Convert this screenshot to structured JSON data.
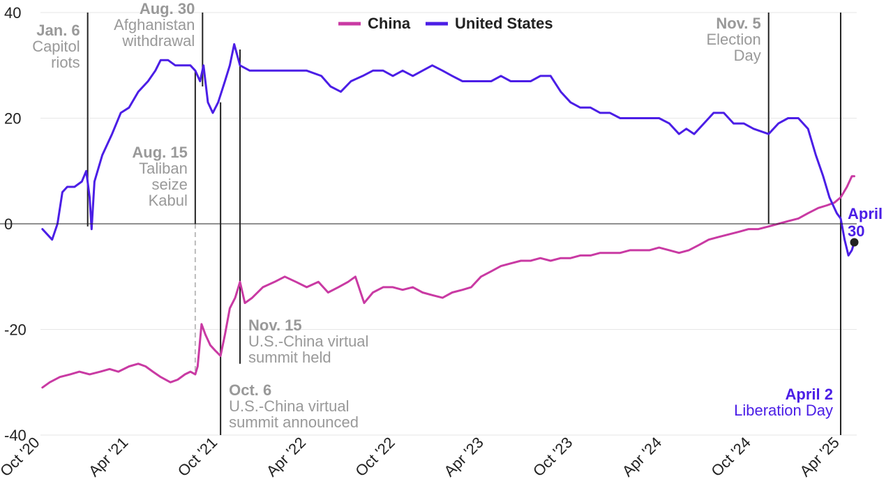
{
  "chart_data": {
    "type": "line",
    "title": "",
    "xlabel": "",
    "ylabel": "",
    "ylim": [
      -40,
      40
    ],
    "y_ticks": [
      40,
      20,
      0,
      -20,
      -40
    ],
    "y_tick_labels": [
      "40",
      "20",
      "0",
      "-20",
      "-40"
    ],
    "x_range": [
      "2020-10-01",
      "2025-05-05"
    ],
    "x_ticks": [
      {
        "label": "Oct '20",
        "date": "2020-10-01"
      },
      {
        "label": "Apr '21",
        "date": "2021-04-01"
      },
      {
        "label": "Oct '21",
        "date": "2021-10-01"
      },
      {
        "label": "Apr '22",
        "date": "2022-04-01"
      },
      {
        "label": "Oct '22",
        "date": "2022-10-01"
      },
      {
        "label": "Apr '23",
        "date": "2023-04-01"
      },
      {
        "label": "Oct '23",
        "date": "2023-10-01"
      },
      {
        "label": "Apr '24",
        "date": "2024-04-01"
      },
      {
        "label": "Oct '24",
        "date": "2024-10-01"
      },
      {
        "label": "Apr '25",
        "date": "2025-04-01"
      }
    ],
    "grid": true,
    "legend_position": "top-center",
    "series": [
      {
        "name": "China",
        "color": "#c93aa3",
        "points": [
          [
            "2020-10-05",
            -31
          ],
          [
            "2020-10-20",
            -30
          ],
          [
            "2020-11-10",
            -29
          ],
          [
            "2020-12-01",
            -28.5
          ],
          [
            "2020-12-20",
            -28
          ],
          [
            "2021-01-10",
            -28.5
          ],
          [
            "2021-02-01",
            -28
          ],
          [
            "2021-02-20",
            -27.5
          ],
          [
            "2021-03-10",
            -28
          ],
          [
            "2021-04-01",
            -27
          ],
          [
            "2021-04-20",
            -26.5
          ],
          [
            "2021-05-05",
            -27
          ],
          [
            "2021-05-20",
            -28
          ],
          [
            "2021-06-05",
            -29
          ],
          [
            "2021-06-25",
            -30
          ],
          [
            "2021-07-10",
            -29.5
          ],
          [
            "2021-07-25",
            -28.5
          ],
          [
            "2021-08-05",
            -28
          ],
          [
            "2021-08-15",
            -28.5
          ],
          [
            "2021-08-20",
            -27
          ],
          [
            "2021-08-28",
            -19
          ],
          [
            "2021-09-05",
            -21
          ],
          [
            "2021-09-15",
            -23
          ],
          [
            "2021-09-25",
            -24
          ],
          [
            "2021-10-06",
            -25
          ],
          [
            "2021-10-15",
            -21
          ],
          [
            "2021-10-25",
            -16
          ],
          [
            "2021-11-05",
            -14
          ],
          [
            "2021-11-15",
            -11
          ],
          [
            "2021-11-25",
            -15
          ],
          [
            "2021-12-10",
            -14
          ],
          [
            "2022-01-01",
            -12
          ],
          [
            "2022-01-25",
            -11
          ],
          [
            "2022-02-15",
            -10
          ],
          [
            "2022-03-10",
            -11
          ],
          [
            "2022-04-01",
            -12
          ],
          [
            "2022-04-25",
            -11
          ],
          [
            "2022-05-15",
            -13
          ],
          [
            "2022-06-05",
            -12
          ],
          [
            "2022-06-25",
            -11
          ],
          [
            "2022-07-10",
            -10
          ],
          [
            "2022-07-28",
            -15
          ],
          [
            "2022-08-15",
            -13
          ],
          [
            "2022-09-05",
            -12
          ],
          [
            "2022-09-25",
            -12
          ],
          [
            "2022-10-15",
            -12.5
          ],
          [
            "2022-11-05",
            -12
          ],
          [
            "2022-11-25",
            -13
          ],
          [
            "2022-12-15",
            -13.5
          ],
          [
            "2023-01-05",
            -14
          ],
          [
            "2023-01-25",
            -13
          ],
          [
            "2023-02-15",
            -12.5
          ],
          [
            "2023-03-05",
            -12
          ],
          [
            "2023-03-25",
            -10
          ],
          [
            "2023-04-15",
            -9
          ],
          [
            "2023-05-05",
            -8
          ],
          [
            "2023-05-25",
            -7.5
          ],
          [
            "2023-06-15",
            -7
          ],
          [
            "2023-07-05",
            -7
          ],
          [
            "2023-07-25",
            -6.5
          ],
          [
            "2023-08-15",
            -7
          ],
          [
            "2023-09-05",
            -6.5
          ],
          [
            "2023-09-25",
            -6.5
          ],
          [
            "2023-10-15",
            -6
          ],
          [
            "2023-11-05",
            -6
          ],
          [
            "2023-11-25",
            -5.5
          ],
          [
            "2023-12-15",
            -5.5
          ],
          [
            "2024-01-05",
            -5.5
          ],
          [
            "2024-01-25",
            -5
          ],
          [
            "2024-02-15",
            -5
          ],
          [
            "2024-03-05",
            -5
          ],
          [
            "2024-03-25",
            -4.5
          ],
          [
            "2024-04-15",
            -5
          ],
          [
            "2024-05-05",
            -5.5
          ],
          [
            "2024-05-25",
            -5
          ],
          [
            "2024-06-15",
            -4
          ],
          [
            "2024-07-05",
            -3
          ],
          [
            "2024-07-25",
            -2.5
          ],
          [
            "2024-08-15",
            -2
          ],
          [
            "2024-09-05",
            -1.5
          ],
          [
            "2024-09-25",
            -1
          ],
          [
            "2024-10-15",
            -1
          ],
          [
            "2024-11-05",
            -0.5
          ],
          [
            "2024-11-25",
            0
          ],
          [
            "2024-12-15",
            0.5
          ],
          [
            "2025-01-05",
            1
          ],
          [
            "2025-01-25",
            2
          ],
          [
            "2025-02-15",
            3
          ],
          [
            "2025-03-05",
            3.5
          ],
          [
            "2025-03-20",
            4
          ],
          [
            "2025-04-02",
            5
          ],
          [
            "2025-04-15",
            7
          ],
          [
            "2025-04-25",
            9
          ],
          [
            "2025-04-30",
            9
          ]
        ]
      },
      {
        "name": "United States",
        "color": "#4b1ee6",
        "points": [
          [
            "2020-10-05",
            -1
          ],
          [
            "2020-10-15",
            -2
          ],
          [
            "2020-10-25",
            -3
          ],
          [
            "2020-11-05",
            0
          ],
          [
            "2020-11-15",
            6
          ],
          [
            "2020-11-25",
            7
          ],
          [
            "2020-12-10",
            7
          ],
          [
            "2020-12-25",
            8
          ],
          [
            "2021-01-03",
            10
          ],
          [
            "2021-01-10",
            5
          ],
          [
            "2021-01-14",
            -1
          ],
          [
            "2021-01-20",
            8
          ],
          [
            "2021-02-05",
            13
          ],
          [
            "2021-02-25",
            17
          ],
          [
            "2021-03-15",
            21
          ],
          [
            "2021-04-01",
            22
          ],
          [
            "2021-04-20",
            25
          ],
          [
            "2021-05-10",
            27
          ],
          [
            "2021-05-25",
            29
          ],
          [
            "2021-06-05",
            31
          ],
          [
            "2021-06-20",
            31
          ],
          [
            "2021-07-05",
            30
          ],
          [
            "2021-07-20",
            30
          ],
          [
            "2021-08-05",
            30
          ],
          [
            "2021-08-15",
            29
          ],
          [
            "2021-08-25",
            27
          ],
          [
            "2021-09-01",
            30
          ],
          [
            "2021-09-10",
            23
          ],
          [
            "2021-09-20",
            21
          ],
          [
            "2021-10-01",
            23
          ],
          [
            "2021-10-15",
            27
          ],
          [
            "2021-10-25",
            30
          ],
          [
            "2021-11-03",
            34
          ],
          [
            "2021-11-15",
            30
          ],
          [
            "2021-12-05",
            29
          ],
          [
            "2022-01-01",
            29
          ],
          [
            "2022-02-01",
            29
          ],
          [
            "2022-03-01",
            29
          ],
          [
            "2022-04-01",
            29
          ],
          [
            "2022-05-01",
            28
          ],
          [
            "2022-05-20",
            26
          ],
          [
            "2022-06-10",
            25
          ],
          [
            "2022-07-01",
            27
          ],
          [
            "2022-07-25",
            28
          ],
          [
            "2022-08-15",
            29
          ],
          [
            "2022-09-05",
            29
          ],
          [
            "2022-09-25",
            28
          ],
          [
            "2022-10-15",
            29
          ],
          [
            "2022-11-05",
            28
          ],
          [
            "2022-11-25",
            29
          ],
          [
            "2022-12-15",
            30
          ],
          [
            "2023-01-05",
            29
          ],
          [
            "2023-01-25",
            28
          ],
          [
            "2023-02-15",
            27
          ],
          [
            "2023-03-05",
            27
          ],
          [
            "2023-03-25",
            27
          ],
          [
            "2023-04-15",
            27
          ],
          [
            "2023-05-05",
            28
          ],
          [
            "2023-05-25",
            27
          ],
          [
            "2023-06-15",
            27
          ],
          [
            "2023-07-05",
            27
          ],
          [
            "2023-07-25",
            28
          ],
          [
            "2023-08-15",
            28
          ],
          [
            "2023-09-05",
            25
          ],
          [
            "2023-09-25",
            23
          ],
          [
            "2023-10-15",
            22
          ],
          [
            "2023-11-05",
            22
          ],
          [
            "2023-11-25",
            21
          ],
          [
            "2023-12-15",
            21
          ],
          [
            "2024-01-05",
            20
          ],
          [
            "2024-01-25",
            20
          ],
          [
            "2024-02-15",
            20
          ],
          [
            "2024-03-05",
            20
          ],
          [
            "2024-03-25",
            20
          ],
          [
            "2024-04-15",
            19
          ],
          [
            "2024-05-05",
            17
          ],
          [
            "2024-05-20",
            18
          ],
          [
            "2024-06-05",
            17
          ],
          [
            "2024-06-25",
            19
          ],
          [
            "2024-07-15",
            21
          ],
          [
            "2024-08-05",
            21
          ],
          [
            "2024-08-25",
            19
          ],
          [
            "2024-09-15",
            19
          ],
          [
            "2024-10-05",
            18
          ],
          [
            "2024-11-05",
            17
          ],
          [
            "2024-11-25",
            19
          ],
          [
            "2024-12-15",
            20
          ],
          [
            "2025-01-05",
            20
          ],
          [
            "2025-01-25",
            18
          ],
          [
            "2025-02-10",
            13
          ],
          [
            "2025-02-25",
            9
          ],
          [
            "2025-03-10",
            5
          ],
          [
            "2025-03-25",
            2
          ],
          [
            "2025-04-02",
            1
          ],
          [
            "2025-04-10",
            -3
          ],
          [
            "2025-04-18",
            -6
          ],
          [
            "2025-04-25",
            -5
          ],
          [
            "2025-04-30",
            -3.5
          ]
        ]
      }
    ],
    "annotations": [
      {
        "date": "2021-01-06",
        "title": "Jan. 6",
        "lines": [
          "Capitol",
          "riots"
        ],
        "line_top": 40,
        "line_bottom": -0.5,
        "color": "#999999",
        "align": "end"
      },
      {
        "date": "2021-08-15",
        "title": "Aug. 15",
        "lines": [
          "Taliban",
          "seize",
          "Kabul"
        ],
        "line_top": 29,
        "line_bottom": 0,
        "color": "#999999",
        "align": "end",
        "dashed_to": -28
      },
      {
        "date": "2021-08-30",
        "title": "Aug. 30",
        "lines": [
          "Afghanistan",
          "withdrawal"
        ],
        "line_top": 40,
        "line_bottom": 26,
        "color": "#999999",
        "align": "end"
      },
      {
        "date": "2021-10-06",
        "title": "Oct. 6",
        "lines": [
          "U.S.-China virtual",
          "summit announced"
        ],
        "line_top": 23,
        "line_bottom": -40,
        "color": "#999999",
        "align": "start"
      },
      {
        "date": "2021-11-15",
        "title": "Nov. 15",
        "lines": [
          "U.S.-China virtual",
          "summit held"
        ],
        "line_top": 33,
        "line_bottom": -26.5,
        "color": "#999999",
        "align": "start"
      },
      {
        "date": "2024-11-05",
        "title": "Nov. 5",
        "lines": [
          "Election",
          "Day"
        ],
        "line_top": 40,
        "line_bottom": 0,
        "color": "#999999",
        "align": "end"
      },
      {
        "date": "2025-04-02",
        "title": "April 2",
        "lines": [
          "Liberation Day"
        ],
        "line_top": 40,
        "line_bottom": -40,
        "color": "#4b1ee6",
        "align": "end"
      }
    ],
    "end_label": {
      "date": "2025-04-30",
      "value": -3.5,
      "lines": [
        "April",
        "30"
      ],
      "color": "#4b1ee6"
    }
  }
}
